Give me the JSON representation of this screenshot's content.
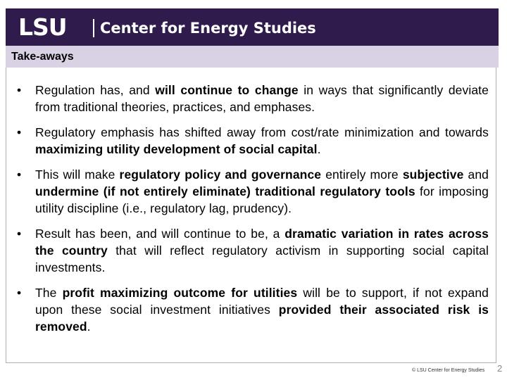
{
  "header": {
    "logo_text": "LSU",
    "title": "Center for Energy Studies",
    "background_color": "#2f1b4c"
  },
  "section": {
    "title": "Take-aways",
    "background_color": "#d9d2e5"
  },
  "bullets": [
    {
      "symbol": "•",
      "segments": [
        {
          "text": "Regulation has, and ",
          "bold": false
        },
        {
          "text": "will continue to change",
          "bold": true
        },
        {
          "text": " in ways that significantly deviate from traditional theories, practices, and emphases.",
          "bold": false
        }
      ]
    },
    {
      "symbol": "•",
      "segments": [
        {
          "text": "Regulatory emphasis has shifted away from cost/rate minimization and towards ",
          "bold": false
        },
        {
          "text": "maximizing utility development of social capital",
          "bold": true
        },
        {
          "text": ".",
          "bold": false
        }
      ]
    },
    {
      "symbol": "•",
      "segments": [
        {
          "text": "This will make ",
          "bold": false
        },
        {
          "text": "regulatory policy and governance",
          "bold": true
        },
        {
          "text": " entirely more ",
          "bold": false
        },
        {
          "text": "subjective",
          "bold": true
        },
        {
          "text": " and ",
          "bold": false
        },
        {
          "text": "undermine (if not entirely eliminate) traditional regulatory tools",
          "bold": true
        },
        {
          "text": " for imposing utility discipline (i.e., regulatory lag, prudency).",
          "bold": false
        }
      ]
    },
    {
      "symbol": "•",
      "segments": [
        {
          "text": "Result has been, and will continue to be, a ",
          "bold": false
        },
        {
          "text": "dramatic variation in rates across the country",
          "bold": true
        },
        {
          "text": " that will reflect regulatory activism in supporting social capital investments.",
          "bold": false
        }
      ]
    },
    {
      "symbol": "•",
      "segments": [
        {
          "text": "The ",
          "bold": false
        },
        {
          "text": "profit maximizing outcome for utilities",
          "bold": true
        },
        {
          "text": " will be to support, if not expand upon these social investment initiatives ",
          "bold": false
        },
        {
          "text": "provided their associated risk is removed",
          "bold": true
        },
        {
          "text": ".",
          "bold": false
        }
      ]
    }
  ],
  "footer": {
    "copyright": "© LSU Center for Energy Studies",
    "page_number": "2"
  }
}
